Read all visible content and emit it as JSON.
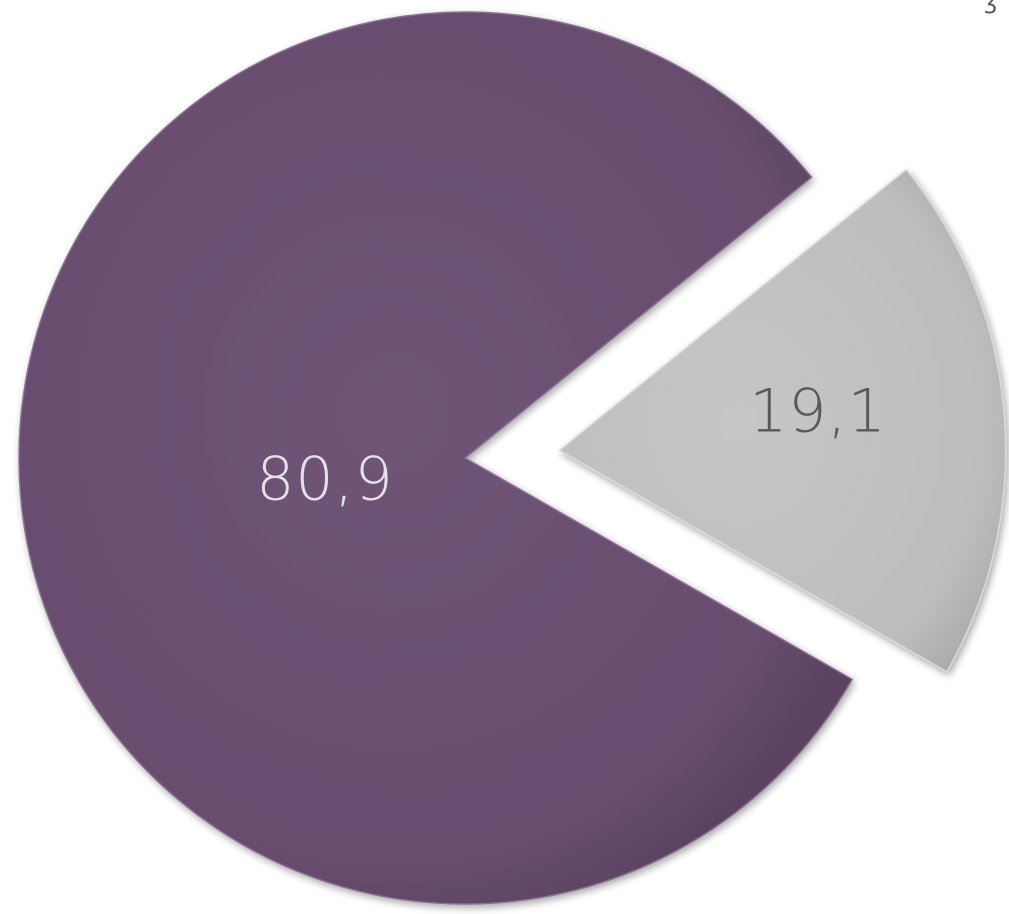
{
  "chart_data": {
    "type": "pie",
    "exploded_slice": "19,1",
    "slices": [
      {
        "label": "80,9",
        "value": 80.9,
        "color": "#6a5070",
        "label_color": "#e6e0ea"
      },
      {
        "label": "19,1",
        "value": 19.1,
        "color": "#c2c2c2",
        "label_color": "#555a5c"
      }
    ]
  },
  "corner_mark": "ʒ"
}
